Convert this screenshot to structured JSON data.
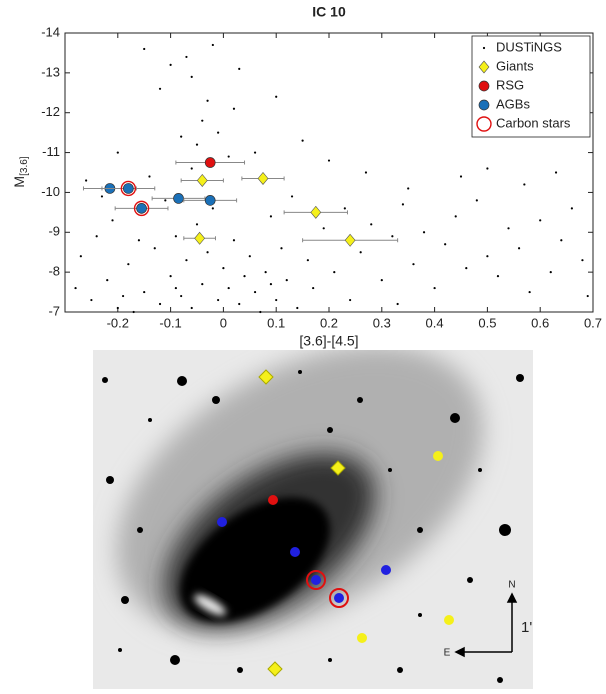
{
  "chart_data": {
    "type": "scatter",
    "title": "IC 10",
    "xlabel": "[3.6]-[4.5]",
    "ylabel": "M",
    "ylabel_subscript": "[3.6]",
    "xlim": [
      -0.3,
      0.7
    ],
    "xticks": [
      -0.2,
      -0.1,
      0,
      0.1,
      0.2,
      0.3,
      0.4,
      0.5,
      0.6,
      0.7
    ],
    "ylim": [
      -7,
      -14
    ],
    "yticks": [
      -14,
      -13,
      -12,
      -11,
      -10,
      -9,
      -8,
      -7
    ],
    "legend": "upper right",
    "series": [
      {
        "name": "DUSTiNGS",
        "color": "#000000",
        "marker": "dot",
        "x": [
          -0.25,
          -0.22,
          -0.2,
          -0.18,
          -0.15,
          -0.13,
          -0.12,
          -0.1,
          -0.09,
          -0.08,
          -0.07,
          -0.06,
          -0.05,
          -0.04,
          -0.03,
          -0.02,
          -0.01,
          0,
          0.01,
          0.02,
          0.03,
          0.04,
          0.05,
          0.06,
          0.08,
          0.1,
          0.12,
          0.14,
          -0.28,
          -0.27,
          -0.24,
          -0.21,
          -0.17,
          -0.11,
          -0.14,
          -0.06,
          -0.05,
          -0.04,
          -0.03,
          -0.06,
          -0.07,
          -0.02,
          -0.1,
          -0.01,
          0.01,
          0.02,
          -0.08,
          -0.12,
          0.03,
          -0.15,
          0.06,
          0.09,
          0.11,
          0.13,
          0.16,
          0.19,
          0.21,
          0.23,
          0.26,
          0.28,
          0.3,
          0.32,
          0.34,
          0.36,
          0.38,
          0.4,
          0.42,
          0.44,
          0.46,
          0.48,
          0.5,
          0.52,
          0.54,
          0.56,
          0.58,
          0.6,
          0.62,
          0.64,
          0.66,
          0.68,
          0.69,
          0.5,
          0.57,
          0.45,
          0.63,
          0.35,
          0.27,
          0.2,
          0.15,
          0.1,
          -0.2,
          -0.26,
          -0.23,
          -0.16,
          0.07,
          0.09,
          -0.09,
          -0.19,
          0.17,
          0.24,
          0.33
        ],
        "y": [
          -7.3,
          -7.8,
          -7.1,
          -8.2,
          -7.5,
          -8.6,
          -7.2,
          -7.9,
          -8.9,
          -7.4,
          -8.3,
          -7.1,
          -9.2,
          -7.7,
          -8.5,
          -9.6,
          -7.3,
          -8.1,
          -7.6,
          -8.8,
          -7.2,
          -7.9,
          -8.4,
          -7.5,
          -8,
          -7.3,
          -7.8,
          -7.1,
          -7.6,
          -8.4,
          -8.9,
          -9.3,
          -7,
          -9.8,
          -10.4,
          -10.6,
          -11.2,
          -11.8,
          -12.3,
          -12.9,
          -13.4,
          -13.7,
          -13.2,
          -11.5,
          -10.9,
          -12.1,
          -11.4,
          -12.6,
          -13.1,
          -13.6,
          -11,
          -9.4,
          -8.6,
          -9.9,
          -8.3,
          -9.1,
          -8,
          -9.6,
          -8.5,
          -9.2,
          -7.8,
          -8.9,
          -9.7,
          -8.2,
          -9,
          -7.6,
          -8.7,
          -9.4,
          -8.1,
          -9.8,
          -8.4,
          -7.9,
          -9.1,
          -8.6,
          -7.5,
          -9.3,
          -8,
          -8.8,
          -9.6,
          -8.3,
          -7.4,
          -10.6,
          -10.2,
          -10.4,
          -10.5,
          -10.1,
          -10.5,
          -10.8,
          -11.3,
          -12.4,
          -11,
          -10.3,
          -9.9,
          -8.8,
          -7,
          -7.7,
          -7.6,
          -7.4,
          -7.6,
          -7.3,
          -7.2
        ]
      },
      {
        "name": "Giants",
        "color": "#f5f01a",
        "marker": "diamond",
        "x": [
          -0.04,
          0.075,
          0.175,
          0.24,
          -0.045
        ],
        "y": [
          -10.3,
          -10.35,
          -9.5,
          -8.8,
          -8.85
        ],
        "xerr": [
          0.04,
          0.04,
          0.06,
          0.09,
          0.03
        ]
      },
      {
        "name": "RSG",
        "color": "#e01010",
        "marker": "circle",
        "x": [
          -0.025
        ],
        "y": [
          -10.75
        ],
        "xerr": [
          0.065
        ]
      },
      {
        "name": "AGBs",
        "color": "#1a70b8",
        "marker": "circle",
        "x": [
          -0.215,
          -0.18,
          -0.155,
          -0.085,
          -0.025
        ],
        "y": [
          -10.1,
          -10.1,
          -9.6,
          -9.85,
          -9.8
        ],
        "xerr": [
          0.05,
          0.05,
          0.05,
          0.05,
          0.05
        ]
      },
      {
        "name": "Carbon stars",
        "color": "#e01010",
        "marker": "ring",
        "x": [
          -0.18,
          -0.155
        ],
        "y": [
          -10.1,
          -9.6
        ]
      }
    ]
  },
  "finder_image": {
    "north": "N",
    "east": "E",
    "scale": "1'"
  }
}
